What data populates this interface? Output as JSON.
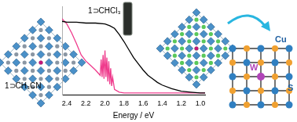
{
  "chart_data": {
    "type": "line",
    "xlabel": "Energy / eV",
    "xlim": [
      2.45,
      0.95
    ],
    "xticks": [
      2.4,
      2.2,
      {
        "value": 2,
        "label": "2.0"
      },
      1.8,
      1.6,
      1.4,
      1.2,
      {
        "value": 1,
        "label": "1.0"
      }
    ],
    "ylim": [
      0,
      1
    ],
    "tick_labels": "x",
    "grid": false,
    "series": [
      {
        "name": "1⊃CHCl₃",
        "color": "#000000",
        "x": [
          2.45,
          2.4,
          2.3,
          2.2,
          2.1,
          2.0,
          1.95,
          1.9,
          1.85,
          1.8,
          1.75,
          1.7,
          1.65,
          1.6,
          1.55,
          1.5,
          1.45,
          1.4,
          1.3,
          1.2,
          1.1,
          1.0,
          0.95
        ],
        "values": [
          0.83,
          0.82,
          0.82,
          0.81,
          0.81,
          0.8,
          0.78,
          0.75,
          0.68,
          0.6,
          0.51,
          0.42,
          0.35,
          0.28,
          0.22,
          0.18,
          0.14,
          0.11,
          0.07,
          0.04,
          0.03,
          0.02,
          0.02
        ]
      },
      {
        "name": "1⊃CH₃CN",
        "color": "#ef3b8c",
        "x": [
          2.45,
          2.4,
          2.35,
          2.3,
          2.25,
          2.2,
          2.15,
          2.1,
          2.05,
          2.04,
          2.03,
          2.02,
          2.01,
          2.0,
          1.99,
          1.98,
          1.97,
          1.96,
          1.95,
          1.94,
          1.93,
          1.92,
          1.9,
          1.85,
          1.8,
          1.6,
          1.4,
          1.2,
          1.0,
          0.95
        ],
        "values": [
          0.86,
          0.8,
          0.7,
          0.58,
          0.45,
          0.38,
          0.33,
          0.28,
          0.22,
          0.4,
          0.2,
          0.45,
          0.18,
          0.5,
          0.2,
          0.42,
          0.15,
          0.38,
          0.12,
          0.3,
          0.1,
          0.2,
          0.06,
          0.03,
          0.02,
          0.02,
          0.02,
          0.02,
          0.02,
          0.02
        ]
      }
    ]
  },
  "diagram": {
    "labels": {
      "cu": "Cu",
      "w": "W",
      "s": "S"
    }
  }
}
